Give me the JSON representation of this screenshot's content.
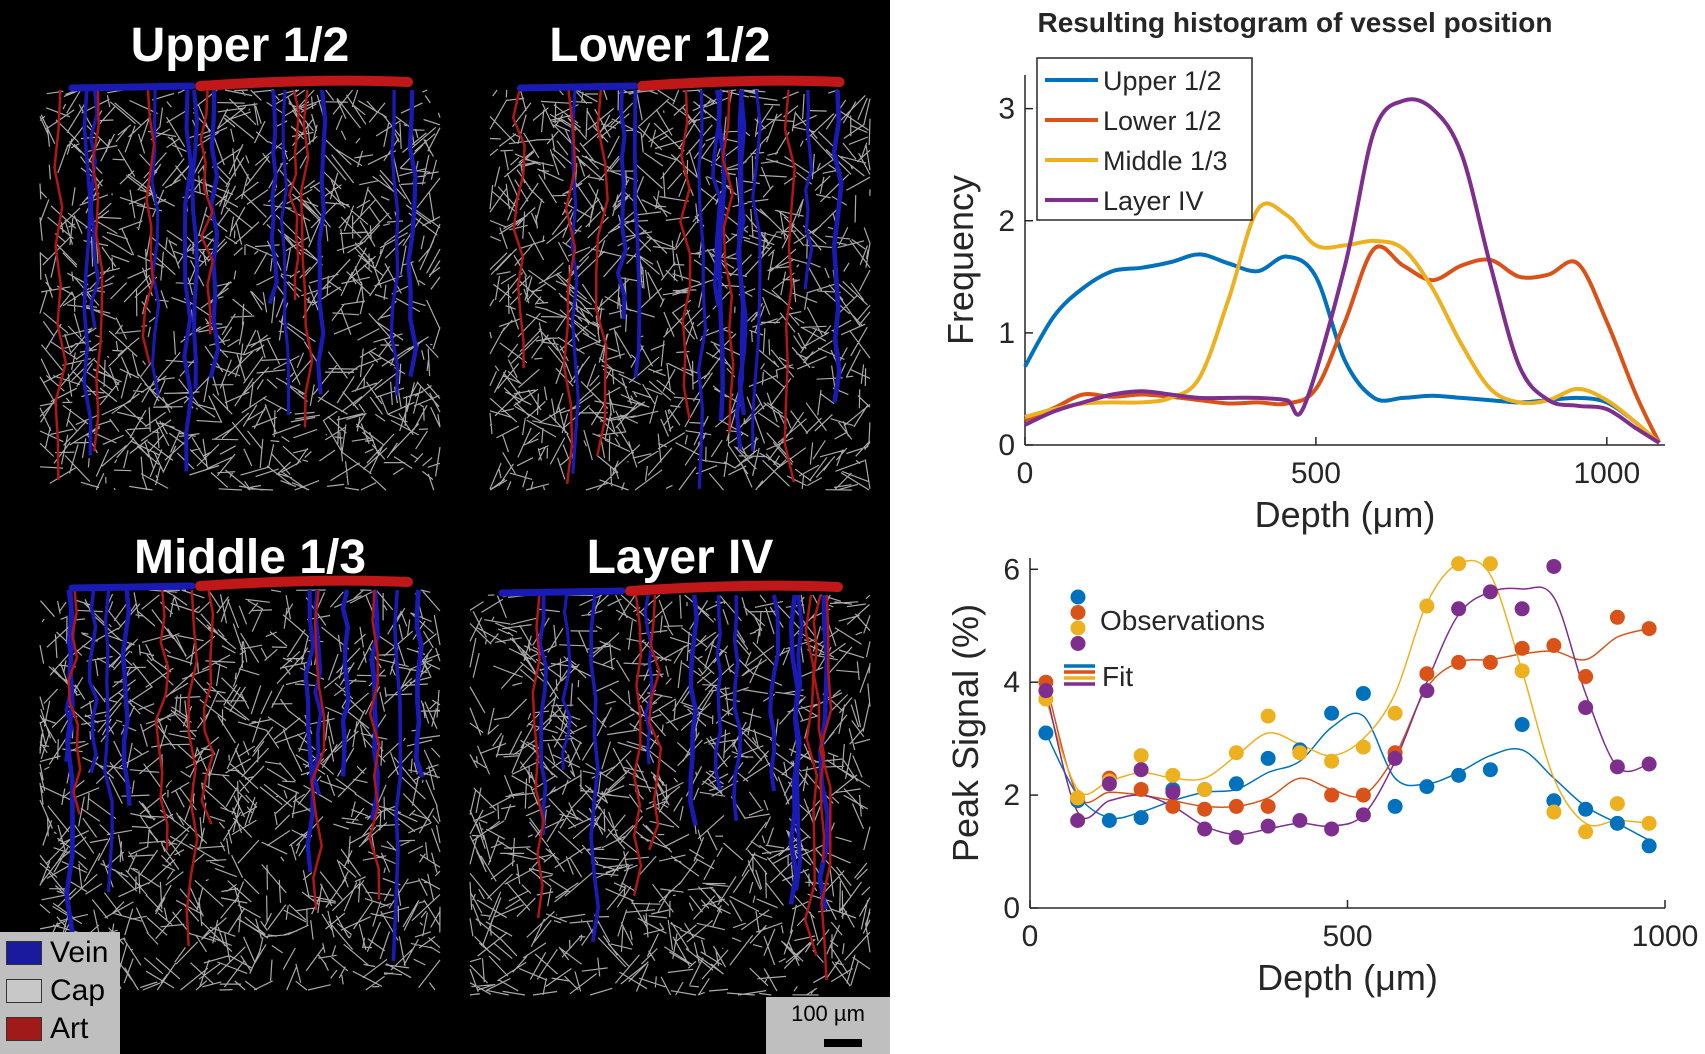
{
  "left_panel": {
    "panels": [
      {
        "title": "Upper 1/2"
      },
      {
        "title": "Lower 1/2"
      },
      {
        "title": "Middle 1/3"
      },
      {
        "title": "Layer IV"
      }
    ],
    "legend": [
      {
        "label": "Vein",
        "color": "#1a1a9e"
      },
      {
        "label": "Cap",
        "color": "#c8c8c8"
      },
      {
        "label": "Art",
        "color": "#a01a1a"
      }
    ],
    "scale_bar": "100 µm"
  },
  "series_colors": {
    "Upper 1/2": "#0072BD",
    "Lower 1/2": "#D95319",
    "Middle 1/3": "#EDB120",
    "Layer IV": "#7E2F8E"
  },
  "chart_data": [
    {
      "type": "line",
      "title": "Resulting histogram of vessel position",
      "xlabel": "Depth (μm)",
      "ylabel": "Frequency",
      "xlim": [
        0,
        1100
      ],
      "ylim": [
        0,
        3.3
      ],
      "xticks": [
        "0",
        "500",
        "1000"
      ],
      "yticks": [
        "0",
        "1",
        "2",
        "3"
      ],
      "legend": [
        "Upper 1/2",
        "Lower 1/2",
        "Middle 1/3",
        "Layer IV"
      ],
      "series": [
        {
          "name": "Upper 1/2",
          "x": [
            0,
            50,
            100,
            150,
            200,
            250,
            300,
            350,
            400,
            450,
            500,
            550,
            600,
            650,
            700,
            750,
            800,
            850,
            900,
            950,
            1000,
            1050,
            1080
          ],
          "y": [
            0.7,
            1.15,
            1.4,
            1.55,
            1.58,
            1.63,
            1.7,
            1.62,
            1.55,
            1.68,
            1.5,
            0.75,
            0.42,
            0.42,
            0.44,
            0.42,
            0.4,
            0.38,
            0.4,
            0.42,
            0.38,
            0.2,
            0.05
          ]
        },
        {
          "name": "Lower 1/2",
          "x": [
            0,
            50,
            100,
            150,
            200,
            250,
            300,
            350,
            400,
            450,
            500,
            550,
            600,
            650,
            700,
            750,
            800,
            850,
            900,
            950,
            1000,
            1050,
            1090
          ],
          "y": [
            0.22,
            0.33,
            0.45,
            0.43,
            0.45,
            0.43,
            0.4,
            0.37,
            0.38,
            0.37,
            0.5,
            1.1,
            1.75,
            1.6,
            1.47,
            1.6,
            1.65,
            1.5,
            1.52,
            1.62,
            1.1,
            0.45,
            0.02
          ]
        },
        {
          "name": "Middle 1/3",
          "x": [
            0,
            50,
            100,
            150,
            200,
            250,
            300,
            350,
            400,
            450,
            500,
            550,
            600,
            650,
            700,
            750,
            800,
            850,
            900,
            950,
            1000,
            1050,
            1090
          ],
          "y": [
            0.25,
            0.32,
            0.37,
            0.38,
            0.38,
            0.42,
            0.6,
            1.3,
            2.1,
            2.05,
            1.78,
            1.78,
            1.82,
            1.75,
            1.4,
            0.9,
            0.5,
            0.38,
            0.4,
            0.5,
            0.4,
            0.2,
            0.02
          ]
        },
        {
          "name": "Layer IV",
          "x": [
            0,
            50,
            100,
            150,
            200,
            250,
            300,
            350,
            400,
            450,
            480,
            550,
            600,
            650,
            700,
            750,
            800,
            850,
            900,
            950,
            1000,
            1050,
            1090
          ],
          "y": [
            0.18,
            0.3,
            0.38,
            0.45,
            0.48,
            0.45,
            0.42,
            0.42,
            0.42,
            0.4,
            0.35,
            1.6,
            2.8,
            3.07,
            3.0,
            2.6,
            1.6,
            0.7,
            0.4,
            0.35,
            0.32,
            0.15,
            0.02
          ]
        }
      ]
    },
    {
      "type": "scatter",
      "xlabel": "Depth (μm)",
      "ylabel": "Peak Signal (%)",
      "xlim": [
        0,
        1000
      ],
      "ylim": [
        0,
        6.2
      ],
      "xticks": [
        "0",
        "500",
        "1000"
      ],
      "yticks": [
        "0",
        "2",
        "4",
        "6"
      ],
      "legend": [
        "Observations",
        "Fit"
      ],
      "x": [
        25,
        75,
        125,
        175,
        225,
        275,
        325,
        375,
        425,
        475,
        525,
        575,
        625,
        675,
        725,
        775,
        825,
        875,
        925,
        975
      ],
      "series": [
        {
          "name": "Upper 1/2",
          "y": [
            3.1,
            1.9,
            1.55,
            1.6,
            2.1,
            2.1,
            2.2,
            2.65,
            2.8,
            3.45,
            3.8,
            1.8,
            2.15,
            2.35,
            2.45,
            3.25,
            1.9,
            1.75,
            1.5,
            1.1
          ],
          "fit": [
            3.1,
            2.0,
            1.6,
            1.7,
            1.9,
            2.05,
            2.1,
            2.4,
            2.6,
            3.2,
            3.4,
            2.3,
            2.2,
            2.4,
            2.7,
            2.8,
            2.3,
            1.8,
            1.5,
            1.2
          ]
        },
        {
          "name": "Lower 1/2",
          "y": [
            4.0,
            1.95,
            2.3,
            2.1,
            1.8,
            1.75,
            1.8,
            1.8,
            2.75,
            2.0,
            2.0,
            2.75,
            4.15,
            4.35,
            4.35,
            4.6,
            4.65,
            4.1,
            5.15,
            4.95
          ],
          "fit": [
            4.0,
            2.0,
            2.05,
            2.0,
            1.9,
            1.8,
            1.8,
            1.95,
            2.3,
            2.1,
            2.0,
            2.7,
            3.9,
            4.35,
            4.4,
            4.5,
            4.55,
            4.4,
            4.8,
            4.95
          ]
        },
        {
          "name": "Middle 1/3",
          "y": [
            3.7,
            1.95,
            2.25,
            2.7,
            2.35,
            2.1,
            2.75,
            3.4,
            2.75,
            2.6,
            2.85,
            3.45,
            5.35,
            6.1,
            6.1,
            4.2,
            1.7,
            1.35,
            1.85,
            1.5
          ],
          "fit": [
            3.7,
            2.1,
            2.25,
            2.4,
            2.3,
            2.3,
            2.7,
            3.1,
            2.9,
            2.7,
            3.0,
            3.8,
            5.4,
            6.1,
            5.9,
            4.2,
            2.3,
            1.5,
            1.55,
            1.5
          ]
        },
        {
          "name": "Layer IV",
          "y": [
            3.85,
            1.55,
            2.2,
            2.45,
            2.05,
            1.4,
            1.25,
            1.45,
            1.55,
            1.4,
            1.65,
            2.65,
            3.85,
            5.3,
            5.6,
            5.3,
            6.05,
            3.55,
            2.5,
            2.55
          ],
          "fit": [
            3.85,
            1.7,
            1.9,
            2.0,
            1.8,
            1.45,
            1.3,
            1.4,
            1.5,
            1.45,
            1.65,
            2.6,
            4.0,
            5.2,
            5.6,
            5.65,
            5.5,
            3.8,
            2.5,
            2.55
          ]
        }
      ]
    }
  ]
}
